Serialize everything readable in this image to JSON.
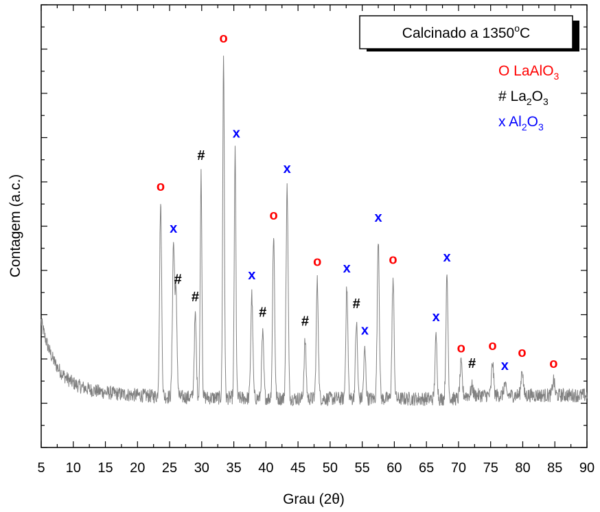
{
  "chart_data": {
    "type": "line",
    "title_box": {
      "text": "Calcinado a 1350",
      "degree": "o",
      "unit": "C"
    },
    "xlabel": "Grau (2θ)",
    "ylabel": "Contagem (a.c.)",
    "xlim": [
      5,
      90
    ],
    "xticks": [
      5,
      10,
      15,
      20,
      25,
      30,
      35,
      40,
      45,
      50,
      55,
      60,
      65,
      70,
      75,
      80,
      85,
      90
    ],
    "ylim": [
      0,
      100
    ],
    "line_color": "#808080",
    "legend": [
      {
        "symbol": "O",
        "name": "LaAlO",
        "sub": "3",
        "tail": "",
        "color": "#ff0000"
      },
      {
        "symbol": "#",
        "name": "La",
        "sub": "2",
        "tail": "O",
        "sub2": "3",
        "color": "#000000"
      },
      {
        "symbol": "x",
        "name": "Al",
        "sub": "2",
        "tail": "O",
        "sub2": "3",
        "color": "#0000ff"
      }
    ],
    "peaks": [
      {
        "x": 23.6,
        "y": 54.5,
        "phase": "o"
      },
      {
        "x": 25.6,
        "y": 45.0,
        "phase": "x"
      },
      {
        "x": 26.0,
        "y": 33.5,
        "phase": "#"
      },
      {
        "x": 29.0,
        "y": 29.5,
        "phase": "#"
      },
      {
        "x": 29.9,
        "y": 61.5,
        "phase": "#"
      },
      {
        "x": 33.4,
        "y": 88.0,
        "phase": "o"
      },
      {
        "x": 35.2,
        "y": 66.5,
        "phase": "x"
      },
      {
        "x": 37.8,
        "y": 34.5,
        "phase": "x"
      },
      {
        "x": 39.5,
        "y": 25.5,
        "phase": "#"
      },
      {
        "x": 41.2,
        "y": 48.0,
        "phase": "o"
      },
      {
        "x": 43.3,
        "y": 58.5,
        "phase": "x"
      },
      {
        "x": 46.1,
        "y": 24.0,
        "phase": "#"
      },
      {
        "x": 48.0,
        "y": 37.5,
        "phase": "o"
      },
      {
        "x": 52.6,
        "y": 36.0,
        "phase": "x"
      },
      {
        "x": 54.1,
        "y": 28.0,
        "phase": "#"
      },
      {
        "x": 55.4,
        "y": 22.0,
        "phase": "x"
      },
      {
        "x": 57.5,
        "y": 47.5,
        "phase": "x"
      },
      {
        "x": 59.8,
        "y": 38.0,
        "phase": "o"
      },
      {
        "x": 66.5,
        "y": 25.0,
        "phase": "x"
      },
      {
        "x": 68.2,
        "y": 38.5,
        "phase": "x"
      },
      {
        "x": 70.4,
        "y": 18.0,
        "phase": "o"
      },
      {
        "x": 72.1,
        "y": 13.0,
        "phase": "#"
      },
      {
        "x": 75.3,
        "y": 18.5,
        "phase": "o"
      },
      {
        "x": 77.2,
        "y": 13.5,
        "phase": "x"
      },
      {
        "x": 79.9,
        "y": 17.0,
        "phase": "o"
      },
      {
        "x": 84.8,
        "y": 14.5,
        "phase": "o"
      }
    ],
    "markers": [
      {
        "x": 23.6,
        "y": 58.0,
        "label": "o",
        "color": "#ff0000"
      },
      {
        "x": 25.6,
        "y": 48.5,
        "label": "x",
        "color": "#0000ff"
      },
      {
        "x": 26.3,
        "y": 37.0,
        "label": "#",
        "color": "#000000"
      },
      {
        "x": 29.0,
        "y": 33.0,
        "label": "#",
        "color": "#000000"
      },
      {
        "x": 29.9,
        "y": 65.0,
        "label": "#",
        "color": "#000000"
      },
      {
        "x": 33.4,
        "y": 91.5,
        "label": "o",
        "color": "#ff0000"
      },
      {
        "x": 35.4,
        "y": 70.0,
        "label": "x",
        "color": "#0000ff"
      },
      {
        "x": 37.8,
        "y": 38.0,
        "label": "x",
        "color": "#0000ff"
      },
      {
        "x": 39.5,
        "y": 29.5,
        "label": "#",
        "color": "#000000"
      },
      {
        "x": 41.2,
        "y": 51.5,
        "label": "o",
        "color": "#ff0000"
      },
      {
        "x": 43.3,
        "y": 62.0,
        "label": "x",
        "color": "#0000ff"
      },
      {
        "x": 46.1,
        "y": 27.5,
        "label": "#",
        "color": "#000000"
      },
      {
        "x": 48.0,
        "y": 41.0,
        "label": "o",
        "color": "#ff0000"
      },
      {
        "x": 52.6,
        "y": 39.5,
        "label": "x",
        "color": "#0000ff"
      },
      {
        "x": 54.1,
        "y": 31.5,
        "label": "#",
        "color": "#000000"
      },
      {
        "x": 55.4,
        "y": 25.5,
        "label": "x",
        "color": "#0000ff"
      },
      {
        "x": 57.5,
        "y": 51.0,
        "label": "x",
        "color": "#0000ff"
      },
      {
        "x": 59.8,
        "y": 41.5,
        "label": "o",
        "color": "#ff0000"
      },
      {
        "x": 66.5,
        "y": 28.5,
        "label": "x",
        "color": "#0000ff"
      },
      {
        "x": 68.2,
        "y": 42.0,
        "label": "x",
        "color": "#0000ff"
      },
      {
        "x": 70.4,
        "y": 21.5,
        "label": "o",
        "color": "#ff0000"
      },
      {
        "x": 72.1,
        "y": 18.0,
        "label": "#",
        "color": "#000000"
      },
      {
        "x": 75.3,
        "y": 22.0,
        "label": "o",
        "color": "#ff0000"
      },
      {
        "x": 77.2,
        "y": 17.5,
        "label": "x",
        "color": "#0000ff"
      },
      {
        "x": 79.9,
        "y": 20.5,
        "label": "o",
        "color": "#ff0000"
      },
      {
        "x": 84.8,
        "y": 18.0,
        "label": "o",
        "color": "#ff0000"
      }
    ]
  }
}
